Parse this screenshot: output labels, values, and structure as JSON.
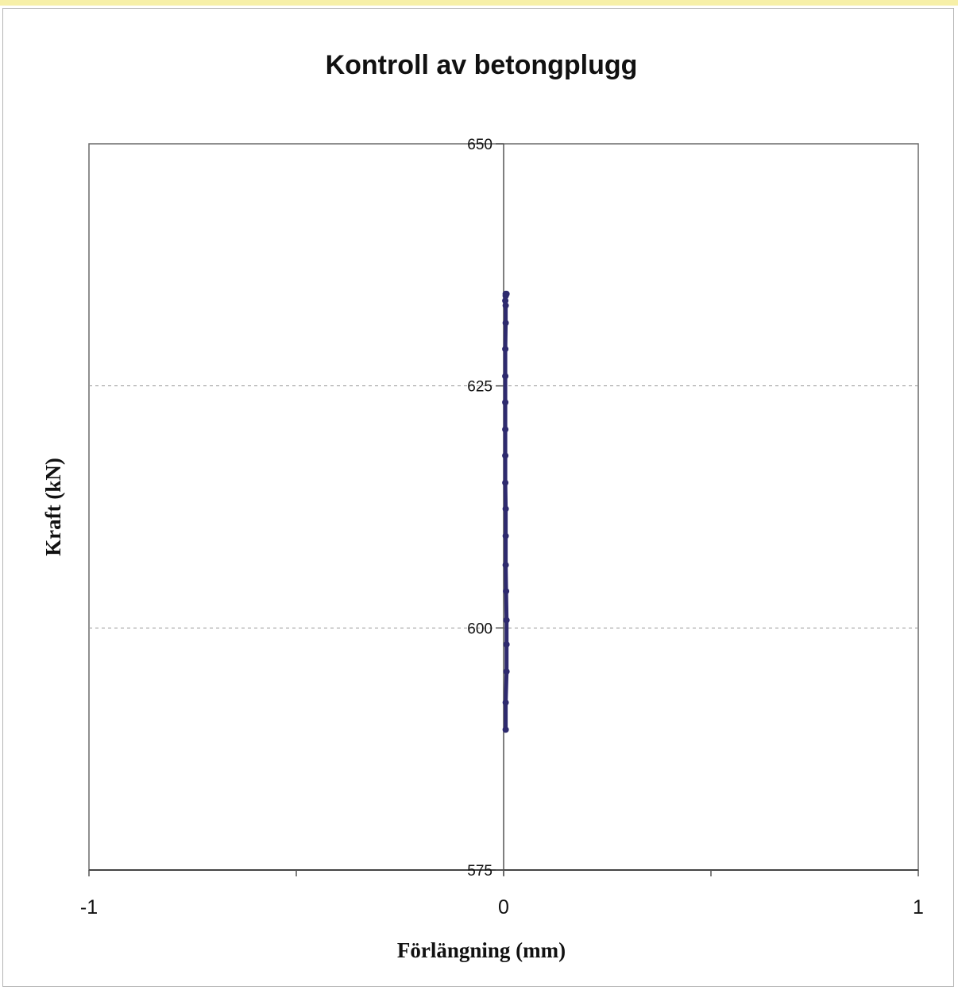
{
  "chart_data": {
    "type": "line",
    "title": "Kontroll av betongplugg",
    "xlabel": "Förlängning (mm)",
    "ylabel": "Kraft (kN)",
    "xlim": [
      -1,
      1
    ],
    "ylim": [
      575,
      650
    ],
    "x_ticks": [
      "-1",
      "0",
      "1"
    ],
    "y_ticks": [
      "575",
      "600",
      "625",
      "650"
    ],
    "grid": "horizontal dashed at 600 and 625",
    "series": [
      {
        "color": "#2e2a6e",
        "x": [
          0.005,
          0.005,
          0.007,
          0.007,
          0.007,
          0.006,
          0.005,
          0.005,
          0.005,
          0.004,
          0.004,
          0.004,
          0.004,
          0.004,
          0.004,
          0.005,
          0.005,
          0.004,
          0.005,
          0.005,
          0.007
        ],
        "y": [
          589.5,
          592.3,
          595.5,
          598.3,
          600.8,
          603.8,
          606.5,
          609.5,
          612.3,
          615.0,
          617.8,
          620.5,
          623.3,
          626.0,
          628.8,
          631.5,
          633.3,
          633.8,
          634.3,
          634.5,
          634.5
        ]
      }
    ]
  }
}
